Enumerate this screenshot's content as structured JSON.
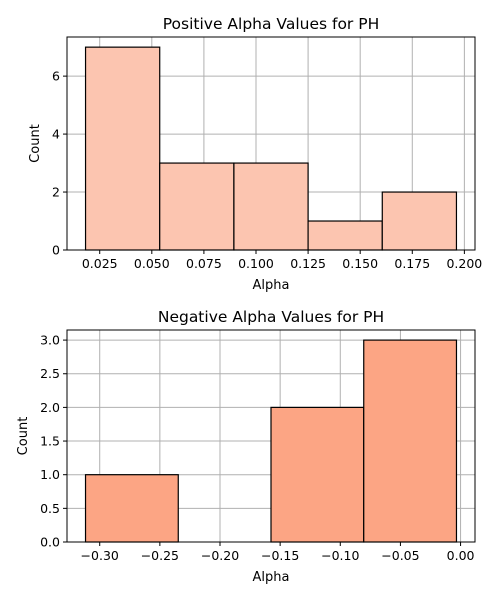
{
  "chart_data": [
    {
      "type": "bar",
      "subtype": "histogram",
      "title": "Positive Alpha Values for PH",
      "xlabel": "Alpha",
      "ylabel": "Count",
      "bins": [
        {
          "x0": 0.0182,
          "x1": 0.0538,
          "count": 7
        },
        {
          "x0": 0.0538,
          "x1": 0.0894,
          "count": 3
        },
        {
          "x0": 0.0894,
          "x1": 0.125,
          "count": 3
        },
        {
          "x0": 0.125,
          "x1": 0.1606,
          "count": 1
        },
        {
          "x0": 0.1606,
          "x1": 0.1962,
          "count": 2
        }
      ],
      "xlim": [
        0.0093,
        0.2051
      ],
      "ylim": [
        0,
        7.35
      ],
      "xticks": [
        0.025,
        0.05,
        0.075,
        0.1,
        0.125,
        0.15,
        0.175,
        0.2
      ],
      "xtick_labels": [
        "0.025",
        "0.050",
        "0.075",
        "0.100",
        "0.125",
        "0.150",
        "0.175",
        "0.200"
      ],
      "yticks": [
        0,
        2,
        4,
        6
      ],
      "ytick_labels": [
        "0",
        "2",
        "4",
        "6"
      ],
      "grid": true,
      "color": "#fcc5b0"
    },
    {
      "type": "bar",
      "subtype": "histogram",
      "title": "Negative Alpha Values for PH",
      "xlabel": "Alpha",
      "ylabel": "Count",
      "bins": [
        {
          "x0": -0.3118,
          "x1": -0.2347,
          "count": 1
        },
        {
          "x0": -0.2347,
          "x1": -0.1576,
          "count": 0
        },
        {
          "x0": -0.1576,
          "x1": -0.0805,
          "count": 2
        },
        {
          "x0": -0.0805,
          "x1": -0.0034,
          "count": 3
        }
      ],
      "xlim": [
        -0.3272,
        0.012
      ],
      "ylim": [
        0,
        3.15
      ],
      "xticks": [
        -0.3,
        -0.25,
        -0.2,
        -0.15,
        -0.1,
        -0.05,
        0.0
      ],
      "xtick_labels": [
        "−0.30",
        "−0.25",
        "−0.20",
        "−0.15",
        "−0.10",
        "−0.05",
        "0.00"
      ],
      "yticks": [
        0,
        0.5,
        1,
        1.5,
        2,
        2.5,
        3
      ],
      "ytick_labels": [
        "0.0",
        "0.5",
        "1.0",
        "1.5",
        "2.0",
        "2.5",
        "3.0"
      ],
      "grid": true,
      "color": "#fca584"
    }
  ]
}
